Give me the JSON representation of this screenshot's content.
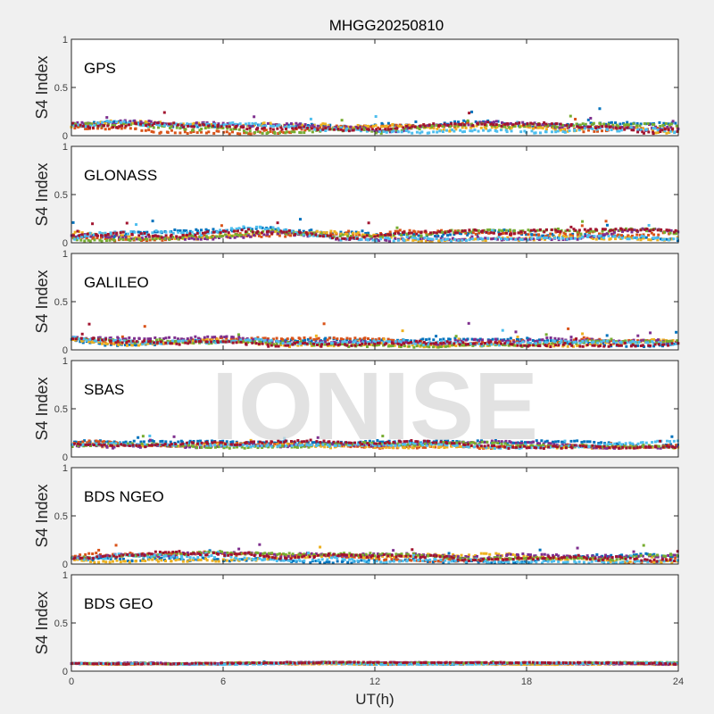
{
  "chart_data": {
    "type": "scatter",
    "title": "MHGG20250810",
    "xlabel": "UT(h)",
    "ylabel": "S4 Index",
    "xlim": [
      0,
      24
    ],
    "ylim": [
      0,
      1
    ],
    "x_ticks": [
      "0",
      "6",
      "12",
      "18",
      "24"
    ],
    "y_ticks": [
      "0",
      "0.5",
      "1"
    ],
    "grid": false,
    "watermark": "IONISE",
    "series_colors": [
      "#0072BD",
      "#D95319",
      "#EDB120",
      "#7E2F8E",
      "#77AC30",
      "#4DBEEE",
      "#A2142F"
    ],
    "panels": [
      {
        "label": "GPS",
        "hours": [
          0,
          2,
          4,
          6,
          8,
          10,
          12,
          14,
          16,
          18,
          20,
          22,
          24
        ],
        "typical_s4": [
          0.09,
          0.1,
          0.08,
          0.08,
          0.07,
          0.07,
          0.07,
          0.08,
          0.1,
          0.08,
          0.07,
          0.08,
          0.08
        ],
        "spread": 0.05,
        "max_s4": 0.33
      },
      {
        "label": "GLONASS",
        "hours": [
          0,
          2,
          4,
          6,
          8,
          10,
          12,
          14,
          16,
          18,
          20,
          22,
          24
        ],
        "typical_s4": [
          0.07,
          0.07,
          0.08,
          0.1,
          0.12,
          0.09,
          0.08,
          0.07,
          0.08,
          0.08,
          0.09,
          0.09,
          0.08
        ],
        "spread": 0.05,
        "max_s4": 0.32
      },
      {
        "label": "GALILEO",
        "hours": [
          0,
          2,
          4,
          6,
          8,
          10,
          12,
          14,
          16,
          18,
          20,
          22,
          24
        ],
        "typical_s4": [
          0.11,
          0.08,
          0.08,
          0.1,
          0.08,
          0.08,
          0.08,
          0.07,
          0.08,
          0.08,
          0.08,
          0.08,
          0.08
        ],
        "spread": 0.04,
        "max_s4": 0.37
      },
      {
        "label": "SBAS",
        "hours": [
          0,
          2,
          4,
          6,
          8,
          10,
          12,
          14,
          16,
          18,
          20,
          22,
          24
        ],
        "typical_s4": [
          0.13,
          0.13,
          0.13,
          0.13,
          0.13,
          0.13,
          0.13,
          0.13,
          0.13,
          0.13,
          0.13,
          0.13,
          0.13
        ],
        "spread": 0.035,
        "max_s4": 0.3
      },
      {
        "label": "BDS NGEO",
        "hours": [
          0,
          2,
          4,
          6,
          8,
          10,
          12,
          14,
          16,
          18,
          20,
          22,
          24
        ],
        "typical_s4": [
          0.07,
          0.07,
          0.08,
          0.08,
          0.07,
          0.06,
          0.06,
          0.06,
          0.06,
          0.06,
          0.06,
          0.06,
          0.07
        ],
        "spread": 0.045,
        "max_s4": 0.24
      },
      {
        "label": "BDS GEO",
        "hours": [
          0,
          2,
          4,
          6,
          8,
          10,
          12,
          14,
          16,
          18,
          20,
          22,
          24
        ],
        "typical_s4": [
          0.08,
          0.08,
          0.08,
          0.08,
          0.08,
          0.085,
          0.08,
          0.08,
          0.08,
          0.08,
          0.08,
          0.08,
          0.08
        ],
        "spread": 0.01,
        "max_s4": 0.1
      }
    ]
  }
}
